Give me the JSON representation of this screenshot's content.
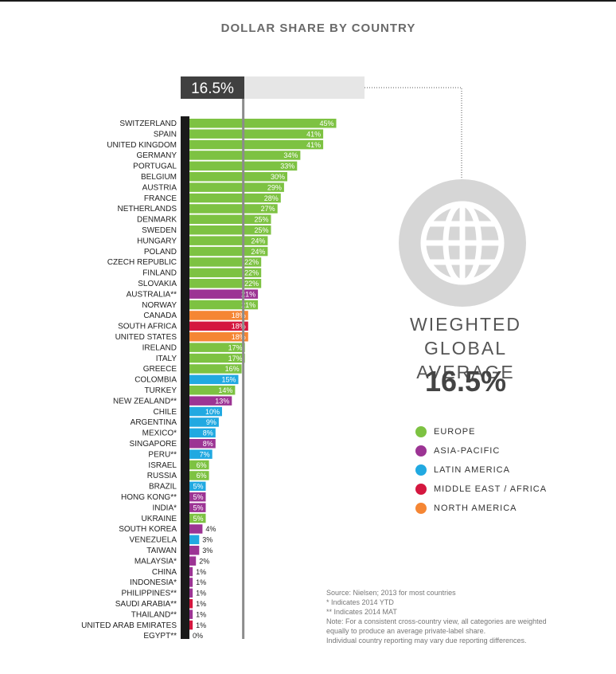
{
  "title": "DOLLAR SHARE BY COUNTRY",
  "average_box_label": "16.5%",
  "globe": {
    "icon": "globe-icon",
    "title_line1": "WIEGHTED",
    "title_line2": "GLOBAL AVERAGE",
    "value": "16.5%"
  },
  "legend": [
    {
      "label": "EUROPE",
      "color": "#7dc242"
    },
    {
      "label": "ASIA-PACIFIC",
      "color": "#9c3494"
    },
    {
      "label": "LATIN AMERICA",
      "color": "#21a9e1"
    },
    {
      "label": "MIDDLE EAST / AFRICA",
      "color": "#d4173f"
    },
    {
      "label": "NORTH AMERICA",
      "color": "#f58634"
    }
  ],
  "notes": {
    "line1": "Source: Nielsen; 2013 for most countries",
    "line2": "* Indicates 2014 YTD",
    "line3": "** Indicates 2014 MAT",
    "line4": "Note: For a consistent cross-country view, all categories are weighted",
    "line5": "equally to produce an average private-label share.",
    "line6": "Individual country reporting may vary due reporting differences."
  },
  "chart_data": {
    "type": "bar",
    "orientation": "horizontal",
    "title": "DOLLAR SHARE BY COUNTRY",
    "reference_line": 16.5,
    "xlim": [
      0,
      45
    ],
    "bars": [
      {
        "label": "SWITZERLAND",
        "value": 45,
        "display": "45%",
        "region": "EUROPE"
      },
      {
        "label": "SPAIN",
        "value": 41,
        "display": "41%",
        "region": "EUROPE"
      },
      {
        "label": "UNITED KINGDOM",
        "value": 41,
        "display": "41%",
        "region": "EUROPE"
      },
      {
        "label": "GERMANY",
        "value": 34,
        "display": "34%",
        "region": "EUROPE"
      },
      {
        "label": "PORTUGAL",
        "value": 33,
        "display": "33%",
        "region": "EUROPE"
      },
      {
        "label": "BELGIUM",
        "value": 30,
        "display": "30%",
        "region": "EUROPE"
      },
      {
        "label": "AUSTRIA",
        "value": 29,
        "display": "29%",
        "region": "EUROPE"
      },
      {
        "label": "FRANCE",
        "value": 28,
        "display": "28%",
        "region": "EUROPE"
      },
      {
        "label": "NETHERLANDS",
        "value": 27,
        "display": "27%",
        "region": "EUROPE"
      },
      {
        "label": "DENMARK",
        "value": 25,
        "display": "25%",
        "region": "EUROPE"
      },
      {
        "label": "SWEDEN",
        "value": 25,
        "display": "25%",
        "region": "EUROPE"
      },
      {
        "label": "HUNGARY",
        "value": 24,
        "display": "24%",
        "region": "EUROPE"
      },
      {
        "label": "POLAND",
        "value": 24,
        "display": "24%",
        "region": "EUROPE"
      },
      {
        "label": "CZECH REPUBLIC",
        "value": 22,
        "display": "22%",
        "region": "EUROPE"
      },
      {
        "label": "FINLAND",
        "value": 22,
        "display": "22%",
        "region": "EUROPE"
      },
      {
        "label": "SLOVAKIA",
        "value": 22,
        "display": "22%",
        "region": "EUROPE"
      },
      {
        "label": "AUSTRALIA**",
        "value": 21,
        "display": "21%",
        "region": "ASIA-PACIFIC"
      },
      {
        "label": "NORWAY",
        "value": 21,
        "display": "21%",
        "region": "EUROPE"
      },
      {
        "label": "CANADA",
        "value": 18,
        "display": "18%",
        "region": "NORTH AMERICA"
      },
      {
        "label": "SOUTH AFRICA",
        "value": 18,
        "display": "18%",
        "region": "MIDDLE EAST / AFRICA"
      },
      {
        "label": "UNITED STATES",
        "value": 18,
        "display": "18%",
        "region": "NORTH AMERICA"
      },
      {
        "label": "IRELAND",
        "value": 17,
        "display": "17%",
        "region": "EUROPE"
      },
      {
        "label": "ITALY",
        "value": 17,
        "display": "17%",
        "region": "EUROPE"
      },
      {
        "label": "GREECE",
        "value": 16,
        "display": "16%",
        "region": "EUROPE"
      },
      {
        "label": "COLOMBIA",
        "value": 15,
        "display": "15%",
        "region": "LATIN AMERICA"
      },
      {
        "label": "TURKEY",
        "value": 14,
        "display": "14%",
        "region": "EUROPE"
      },
      {
        "label": "NEW ZEALAND**",
        "value": 13,
        "display": "13%",
        "region": "ASIA-PACIFIC"
      },
      {
        "label": "CHILE",
        "value": 10,
        "display": "10%",
        "region": "LATIN AMERICA"
      },
      {
        "label": "ARGENTINA",
        "value": 9,
        "display": "9%",
        "region": "LATIN AMERICA"
      },
      {
        "label": "MEXICO*",
        "value": 8,
        "display": "8%",
        "region": "LATIN AMERICA"
      },
      {
        "label": "SINGAPORE",
        "value": 8,
        "display": "8%",
        "region": "ASIA-PACIFIC"
      },
      {
        "label": "PERU**",
        "value": 7,
        "display": "7%",
        "region": "LATIN AMERICA"
      },
      {
        "label": "ISRAEL",
        "value": 6,
        "display": "6%",
        "region": "EUROPE"
      },
      {
        "label": "RUSSIA",
        "value": 6,
        "display": "6%",
        "region": "EUROPE"
      },
      {
        "label": "BRAZIL",
        "value": 5,
        "display": "5%",
        "region": "LATIN AMERICA"
      },
      {
        "label": "HONG KONG**",
        "value": 5,
        "display": "5%",
        "region": "ASIA-PACIFIC"
      },
      {
        "label": "INDIA*",
        "value": 5,
        "display": "5%",
        "region": "ASIA-PACIFIC"
      },
      {
        "label": "UKRAINE",
        "value": 5,
        "display": "5%",
        "region": "EUROPE"
      },
      {
        "label": "SOUTH KOREA",
        "value": 4,
        "display": "4%",
        "region": "ASIA-PACIFIC"
      },
      {
        "label": "VENEZUELA",
        "value": 3,
        "display": "3%",
        "region": "LATIN AMERICA"
      },
      {
        "label": "TAIWAN",
        "value": 3,
        "display": "3%",
        "region": "ASIA-PACIFIC"
      },
      {
        "label": "MALAYSIA*",
        "value": 2,
        "display": "2%",
        "region": "ASIA-PACIFIC"
      },
      {
        "label": "CHINA",
        "value": 1,
        "display": "1%",
        "region": "ASIA-PACIFIC"
      },
      {
        "label": "INDONESIA*",
        "value": 1,
        "display": "1%",
        "region": "ASIA-PACIFIC"
      },
      {
        "label": "PHILIPPINES**",
        "value": 1,
        "display": "1%",
        "region": "ASIA-PACIFIC"
      },
      {
        "label": "SAUDI ARABIA**",
        "value": 1,
        "display": "1%",
        "region": "MIDDLE EAST / AFRICA"
      },
      {
        "label": "THAILAND**",
        "value": 1,
        "display": "1%",
        "region": "ASIA-PACIFIC"
      },
      {
        "label": "UNITED ARAB EMIRATES",
        "value": 1,
        "display": "1%",
        "region": "MIDDLE EAST / AFRICA"
      },
      {
        "label": "EGYPT**",
        "value": 0,
        "display": "0%",
        "region": "MIDDLE EAST / AFRICA"
      }
    ]
  }
}
